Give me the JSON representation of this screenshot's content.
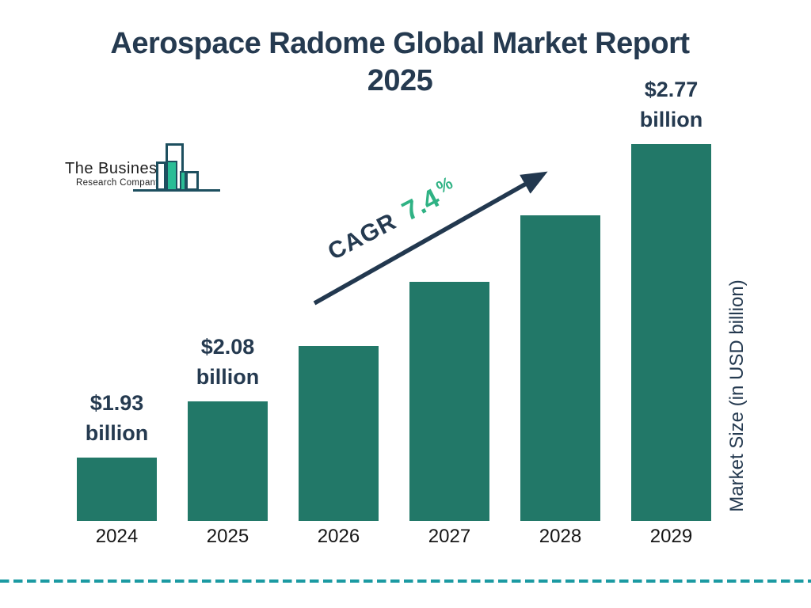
{
  "title": {
    "line1": "Aerospace Radome Global Market Report",
    "line2": "2025"
  },
  "logo": {
    "name_line1": "The Business",
    "name_line2": "Research Company"
  },
  "annotation": {
    "cagr_label": "CAGR",
    "cagr_value": "7.4",
    "percent_sign": "%"
  },
  "y_axis_label": "Market Size (in USD billion)",
  "colors": {
    "navy_text": "#253a50",
    "bar_teal": "#227868",
    "cagr_green": "#2fb284",
    "logo_green": "#2abd96",
    "logo_outline": "#1d4f5f",
    "dashed_line_teal": "#1b9aa2"
  },
  "chart_data": {
    "type": "bar",
    "title": "Aerospace Radome Global Market Report 2025",
    "categories": [
      "2024",
      "2025",
      "2026",
      "2027",
      "2028",
      "2029"
    ],
    "values": [
      1.93,
      2.08,
      2.23,
      2.4,
      2.58,
      2.77
    ],
    "values_estimated": [
      false,
      false,
      true,
      true,
      true,
      false
    ],
    "value_labels": [
      "$1.93 billion",
      "$2.08 billion",
      "",
      "",
      "",
      "$2.77 billion"
    ],
    "unit": "USD billion",
    "cagr": "7.4%",
    "xlabel": "",
    "ylabel": "Market Size (in USD billion)",
    "ylim": [
      0,
      3
    ],
    "gridlines": false,
    "legend": false,
    "bar_color": "#227868"
  }
}
